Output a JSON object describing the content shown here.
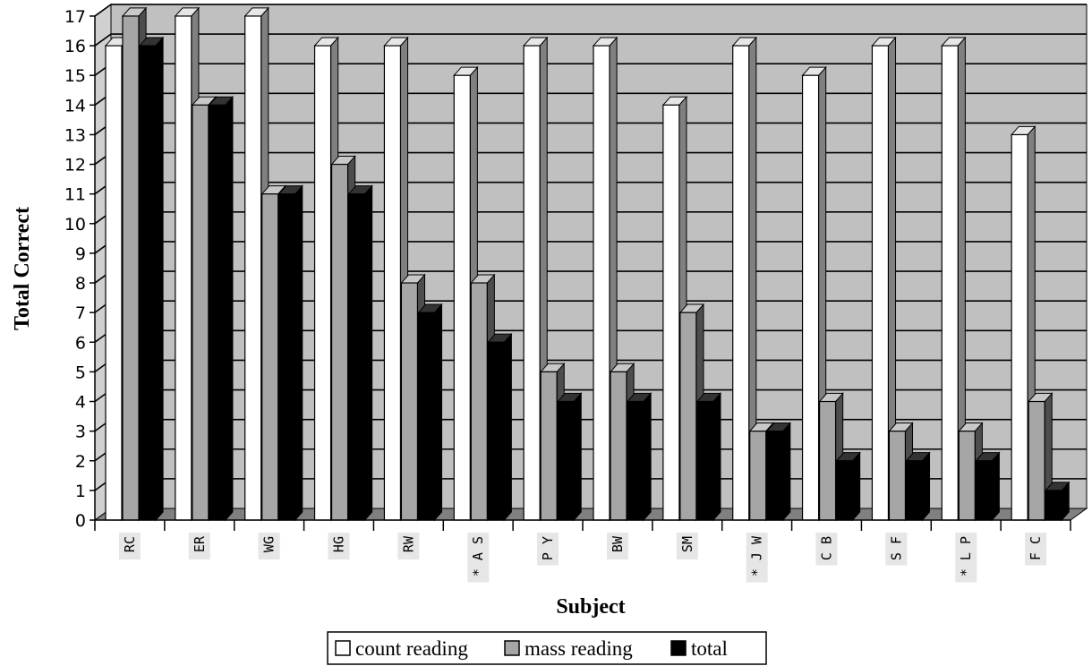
{
  "chart_data": {
    "type": "bar",
    "title": "",
    "xlabel": "Subject",
    "ylabel": "Total Correct",
    "ylim": [
      0,
      17
    ],
    "yticks": [
      "0",
      "1",
      "2",
      "3",
      "4",
      "5",
      "6",
      "7",
      "8",
      "9",
      "10",
      "11",
      "12",
      "13",
      "14",
      "15",
      "16",
      "17"
    ],
    "grid": true,
    "legend_position": "bottom",
    "categories": [
      "RC",
      "ER",
      "WG",
      "HG",
      "RW",
      "* A S",
      "P Y",
      "BW",
      "SM",
      "* J W",
      "C B",
      "S F",
      "* L P",
      "F C"
    ],
    "series": [
      {
        "name": "count reading",
        "color": "#ffffff",
        "values": [
          16,
          17,
          17,
          16,
          16,
          15,
          16,
          16,
          14,
          16,
          15,
          16,
          16,
          13
        ]
      },
      {
        "name": "mass reading",
        "color": "#a6a6a6",
        "values": [
          17,
          14,
          11,
          12,
          8,
          8,
          5,
          5,
          7,
          3,
          4,
          3,
          3,
          4
        ]
      },
      {
        "name": "total",
        "color": "#000000",
        "values": [
          16,
          14,
          11,
          11,
          7,
          6,
          4,
          4,
          4,
          3,
          2,
          2,
          2,
          1
        ]
      }
    ],
    "plot_background": "#c0c0c0"
  }
}
